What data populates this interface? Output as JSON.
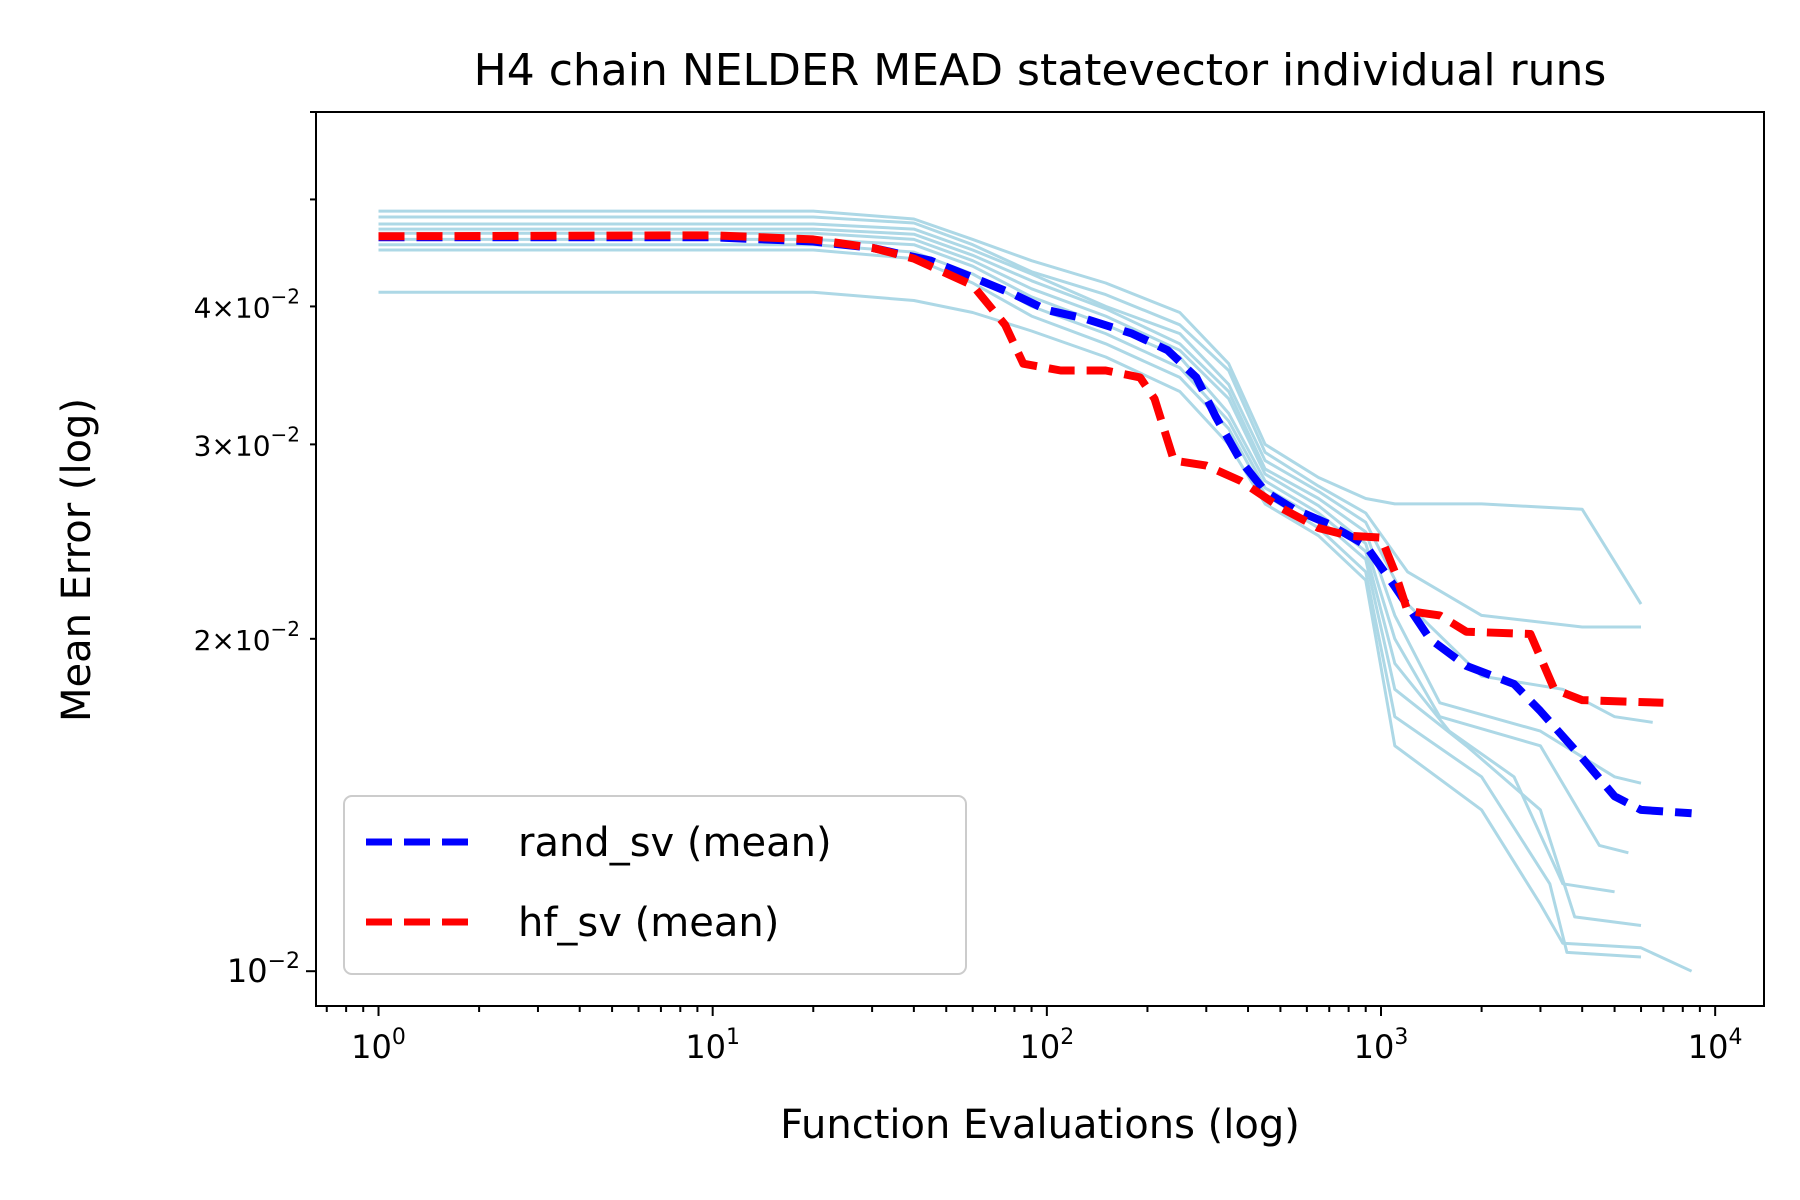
{
  "chart_data": {
    "type": "line",
    "title": "H4 chain NELDER MEAD statevector individual runs",
    "xlabel": "Function Evaluations (log)",
    "ylabel": "Mean Error (log)",
    "xscale": "log",
    "yscale": "log",
    "xlim": [
      0.65,
      14000
    ],
    "ylim": [
      0.0093,
      0.06
    ],
    "x_ticks": [
      {
        "value": 1,
        "base": "10",
        "exp": "0"
      },
      {
        "value": 10,
        "base": "10",
        "exp": "1"
      },
      {
        "value": 100,
        "base": "10",
        "exp": "2"
      },
      {
        "value": 1000,
        "base": "10",
        "exp": "3"
      },
      {
        "value": 10000,
        "base": "10",
        "exp": "4"
      }
    ],
    "y_ticks": [
      {
        "value": 0.01,
        "mant": "",
        "base": "10",
        "exp": "−2"
      },
      {
        "value": 0.02,
        "mant": "2×",
        "base": "10",
        "exp": "−2"
      },
      {
        "value": 0.03,
        "mant": "3×",
        "base": "10",
        "exp": "−2"
      },
      {
        "value": 0.04,
        "mant": "4×",
        "base": "10",
        "exp": "−2"
      }
    ],
    "colors": {
      "individual": "#add8e6",
      "rand_mean": "#0000ff",
      "hf_mean": "#ff0000",
      "hf_individual": "#f08080"
    },
    "legend": {
      "location": "lower-left",
      "entries": [
        {
          "label": "rand_sv (mean)",
          "color": "#0000ff"
        },
        {
          "label": "hf_sv (mean)",
          "color": "#ff0000"
        }
      ]
    },
    "series": [
      {
        "name": "rand_sv (mean)",
        "style": "dashed",
        "color": "#0000ff",
        "points": [
          [
            1,
            0.0462
          ],
          [
            10,
            0.0462
          ],
          [
            20,
            0.0458
          ],
          [
            30,
            0.0452
          ],
          [
            45,
            0.044
          ],
          [
            60,
            0.0425
          ],
          [
            80,
            0.041
          ],
          [
            100,
            0.0397
          ],
          [
            130,
            0.039
          ],
          [
            180,
            0.0378
          ],
          [
            230,
            0.0365
          ],
          [
            280,
            0.0345
          ],
          [
            320,
            0.0318
          ],
          [
            380,
            0.029
          ],
          [
            450,
            0.0272
          ],
          [
            550,
            0.0262
          ],
          [
            700,
            0.0254
          ],
          [
            900,
            0.0243
          ],
          [
            1100,
            0.0223
          ],
          [
            1400,
            0.02
          ],
          [
            1800,
            0.0189
          ],
          [
            2500,
            0.0182
          ],
          [
            3000,
            0.0172
          ],
          [
            4000,
            0.0156
          ],
          [
            5000,
            0.0144
          ],
          [
            6000,
            0.014
          ],
          [
            8500,
            0.0139
          ]
        ]
      },
      {
        "name": "hf_sv (mean)",
        "style": "dashed",
        "color": "#ff0000",
        "points": [
          [
            1,
            0.0463
          ],
          [
            10,
            0.0464
          ],
          [
            20,
            0.046
          ],
          [
            30,
            0.0452
          ],
          [
            40,
            0.0442
          ],
          [
            60,
            0.0418
          ],
          [
            75,
            0.0385
          ],
          [
            85,
            0.0355
          ],
          [
            110,
            0.035
          ],
          [
            150,
            0.035
          ],
          [
            190,
            0.0345
          ],
          [
            210,
            0.033
          ],
          [
            240,
            0.029
          ],
          [
            300,
            0.0287
          ],
          [
            380,
            0.0278
          ],
          [
            500,
            0.0263
          ],
          [
            650,
            0.0252
          ],
          [
            800,
            0.0248
          ],
          [
            1000,
            0.0247
          ],
          [
            1100,
            0.023
          ],
          [
            1200,
            0.0212
          ],
          [
            1500,
            0.021
          ],
          [
            1800,
            0.0203
          ],
          [
            2800,
            0.0202
          ],
          [
            3300,
            0.018
          ],
          [
            4000,
            0.0176
          ],
          [
            7000,
            0.0175
          ]
        ]
      }
    ],
    "individual_runs": [
      {
        "color": "#add8e6",
        "points": [
          [
            1,
            0.0488
          ],
          [
            20,
            0.0488
          ],
          [
            40,
            0.048
          ],
          [
            60,
            0.046
          ],
          [
            90,
            0.044
          ],
          [
            150,
            0.042
          ],
          [
            250,
            0.0395
          ],
          [
            350,
            0.0355
          ],
          [
            450,
            0.03
          ],
          [
            650,
            0.028
          ],
          [
            900,
            0.0268
          ],
          [
            1100,
            0.0265
          ],
          [
            2000,
            0.0265
          ],
          [
            4000,
            0.0262
          ],
          [
            6000,
            0.0215
          ]
        ]
      },
      {
        "color": "#add8e6",
        "points": [
          [
            1,
            0.0482
          ],
          [
            20,
            0.0482
          ],
          [
            40,
            0.0476
          ],
          [
            60,
            0.0455
          ],
          [
            90,
            0.043
          ],
          [
            150,
            0.041
          ],
          [
            250,
            0.0385
          ],
          [
            350,
            0.035
          ],
          [
            450,
            0.0295
          ],
          [
            650,
            0.0275
          ],
          [
            900,
            0.026
          ],
          [
            1200,
            0.023
          ],
          [
            2000,
            0.021
          ],
          [
            4000,
            0.0205
          ],
          [
            6000,
            0.0205
          ]
        ]
      },
      {
        "color": "#add8e6",
        "points": [
          [
            1,
            0.0475
          ],
          [
            20,
            0.0475
          ],
          [
            40,
            0.047
          ],
          [
            60,
            0.045
          ],
          [
            90,
            0.0428
          ],
          [
            150,
            0.04
          ],
          [
            250,
            0.0378
          ],
          [
            350,
            0.034
          ],
          [
            450,
            0.029
          ],
          [
            650,
            0.0272
          ],
          [
            900,
            0.0255
          ],
          [
            1200,
            0.0215
          ],
          [
            2000,
            0.0185
          ],
          [
            3500,
            0.018
          ],
          [
            5000,
            0.017
          ],
          [
            6500,
            0.0168
          ]
        ]
      },
      {
        "color": "#add8e6",
        "points": [
          [
            1,
            0.047
          ],
          [
            20,
            0.047
          ],
          [
            40,
            0.0465
          ],
          [
            60,
            0.0445
          ],
          [
            90,
            0.0422
          ],
          [
            150,
            0.0398
          ],
          [
            250,
            0.037
          ],
          [
            350,
            0.0335
          ],
          [
            450,
            0.0285
          ],
          [
            650,
            0.0268
          ],
          [
            900,
            0.025
          ],
          [
            1100,
            0.021
          ],
          [
            1500,
            0.0175
          ],
          [
            3000,
            0.0165
          ],
          [
            5000,
            0.015
          ],
          [
            6000,
            0.0148
          ]
        ]
      },
      {
        "color": "#add8e6",
        "points": [
          [
            1,
            0.0466
          ],
          [
            20,
            0.0466
          ],
          [
            40,
            0.046
          ],
          [
            60,
            0.044
          ],
          [
            90,
            0.0415
          ],
          [
            150,
            0.0392
          ],
          [
            250,
            0.0365
          ],
          [
            350,
            0.033
          ],
          [
            450,
            0.0282
          ],
          [
            650,
            0.0264
          ],
          [
            900,
            0.0244
          ],
          [
            1100,
            0.02
          ],
          [
            1500,
            0.017
          ],
          [
            3000,
            0.016
          ],
          [
            4500,
            0.013
          ],
          [
            5500,
            0.0128
          ]
        ]
      },
      {
        "color": "#add8e6",
        "points": [
          [
            1,
            0.046
          ],
          [
            20,
            0.046
          ],
          [
            40,
            0.0455
          ],
          [
            60,
            0.0435
          ],
          [
            90,
            0.0408
          ],
          [
            150,
            0.0385
          ],
          [
            250,
            0.036
          ],
          [
            350,
            0.032
          ],
          [
            450,
            0.0278
          ],
          [
            650,
            0.026
          ],
          [
            900,
            0.024
          ],
          [
            1100,
            0.019
          ],
          [
            1600,
            0.0165
          ],
          [
            2500,
            0.015
          ],
          [
            3500,
            0.012
          ],
          [
            5000,
            0.0118
          ]
        ]
      },
      {
        "color": "#add8e6",
        "points": [
          [
            1,
            0.0455
          ],
          [
            20,
            0.0455
          ],
          [
            40,
            0.0448
          ],
          [
            60,
            0.0428
          ],
          [
            90,
            0.04
          ],
          [
            150,
            0.0378
          ],
          [
            250,
            0.0352
          ],
          [
            350,
            0.0315
          ],
          [
            450,
            0.0274
          ],
          [
            650,
            0.0257
          ],
          [
            900,
            0.0236
          ],
          [
            1100,
            0.018
          ],
          [
            1800,
            0.016
          ],
          [
            3000,
            0.014
          ],
          [
            3800,
            0.0112
          ],
          [
            6000,
            0.011
          ]
        ]
      },
      {
        "color": "#add8e6",
        "points": [
          [
            1,
            0.045
          ],
          [
            20,
            0.045
          ],
          [
            40,
            0.0442
          ],
          [
            60,
            0.042
          ],
          [
            90,
            0.0392
          ],
          [
            150,
            0.037
          ],
          [
            250,
            0.0345
          ],
          [
            350,
            0.031
          ],
          [
            450,
            0.027
          ],
          [
            650,
            0.0252
          ],
          [
            900,
            0.023
          ],
          [
            1100,
            0.017
          ],
          [
            2000,
            0.015
          ],
          [
            3200,
            0.012
          ],
          [
            3600,
            0.0104
          ],
          [
            6000,
            0.0103
          ]
        ]
      },
      {
        "color": "#add8e6",
        "points": [
          [
            1,
            0.0412
          ],
          [
            20,
            0.0412
          ],
          [
            40,
            0.0405
          ],
          [
            60,
            0.0395
          ],
          [
            90,
            0.038
          ],
          [
            150,
            0.036
          ],
          [
            250,
            0.0335
          ],
          [
            350,
            0.03
          ],
          [
            450,
            0.0265
          ],
          [
            650,
            0.0248
          ],
          [
            900,
            0.0226
          ],
          [
            1100,
            0.016
          ],
          [
            2000,
            0.014
          ],
          [
            3000,
            0.0115
          ],
          [
            3500,
            0.0106
          ],
          [
            6000,
            0.0105
          ],
          [
            8500,
            0.01
          ]
        ]
      }
    ]
  }
}
